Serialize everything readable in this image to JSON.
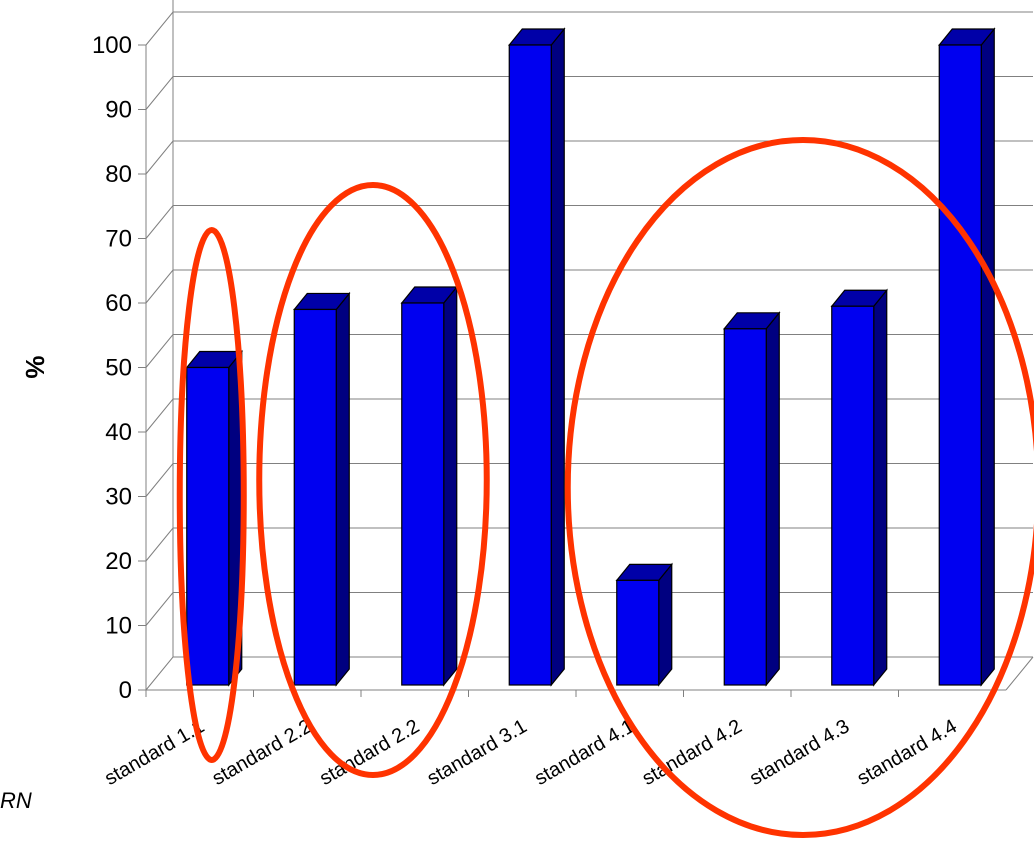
{
  "chart_data": {
    "type": "bar",
    "ylabel": "%",
    "ylim": [
      0,
      100
    ],
    "yticks": [
      0,
      10,
      20,
      30,
      40,
      50,
      60,
      70,
      80,
      90,
      100
    ],
    "grid": true,
    "categories": [
      "standard 1.1",
      "standard 2.2",
      "standard 2.2",
      "standard 3.1",
      "standard 4.1",
      "standard  4.2",
      "standard 4.3",
      "standard 4.4"
    ],
    "values": [
      50,
      59,
      60,
      100,
      17,
      56,
      59.5,
      100
    ],
    "bar_color": "#0000f0",
    "highlight_color": "#ff3300",
    "highlight_groups": [
      [
        0,
        0
      ],
      [
        1,
        2
      ],
      [
        4,
        7
      ]
    ]
  },
  "page": {
    "corner_text": "RN"
  }
}
